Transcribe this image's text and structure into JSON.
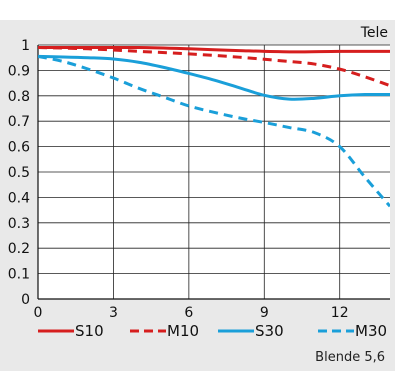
{
  "chart_data": {
    "type": "line",
    "title": "Tele",
    "xlabel": "",
    "ylabel": "",
    "xlim": [
      0,
      14
    ],
    "ylim": [
      0,
      1
    ],
    "xticks": [
      0,
      3,
      6,
      9,
      12
    ],
    "yticks": [
      0,
      0.1,
      0.2,
      0.3,
      0.4,
      0.5,
      0.6,
      0.7,
      0.8,
      0.9,
      1
    ],
    "x_tick_labels": [
      "0",
      "3",
      "6",
      "9",
      "12"
    ],
    "y_tick_labels": [
      "0",
      "0.1",
      "0.2",
      "0.3",
      "0.4",
      "0.5",
      "0.6",
      "0.7",
      "0.8",
      "0.9",
      "1"
    ],
    "grid": true,
    "legend_position": "bottom",
    "annotation": "Blende 5,6",
    "series": [
      {
        "name": "S10",
        "color": "#d61e1e",
        "dash": "solid",
        "x": [
          0,
          2,
          4,
          6,
          8,
          10,
          12,
          14
        ],
        "y": [
          0.99,
          0.99,
          0.99,
          0.985,
          0.978,
          0.973,
          0.975,
          0.975
        ]
      },
      {
        "name": "M10",
        "color": "#d61e1e",
        "dash": "dashed",
        "x": [
          0,
          2,
          4,
          6,
          8,
          10,
          11,
          12,
          13,
          14
        ],
        "y": [
          0.99,
          0.985,
          0.975,
          0.965,
          0.952,
          0.935,
          0.925,
          0.905,
          0.875,
          0.84
        ]
      },
      {
        "name": "S30",
        "color": "#1a9fd9",
        "dash": "solid",
        "x": [
          0,
          1,
          2,
          3,
          4,
          5,
          6,
          7,
          8,
          9,
          10,
          11,
          12,
          13,
          14
        ],
        "y": [
          0.955,
          0.953,
          0.95,
          0.945,
          0.932,
          0.912,
          0.888,
          0.862,
          0.832,
          0.802,
          0.787,
          0.79,
          0.8,
          0.805,
          0.805
        ]
      },
      {
        "name": "M30",
        "color": "#1a9fd9",
        "dash": "dashed",
        "x": [
          0,
          1,
          2,
          3,
          4,
          5,
          6,
          7,
          8,
          9,
          10,
          11,
          12,
          13,
          14
        ],
        "y": [
          0.955,
          0.935,
          0.905,
          0.87,
          0.83,
          0.795,
          0.76,
          0.735,
          0.713,
          0.695,
          0.675,
          0.655,
          0.6,
          0.48,
          0.365
        ]
      }
    ]
  }
}
